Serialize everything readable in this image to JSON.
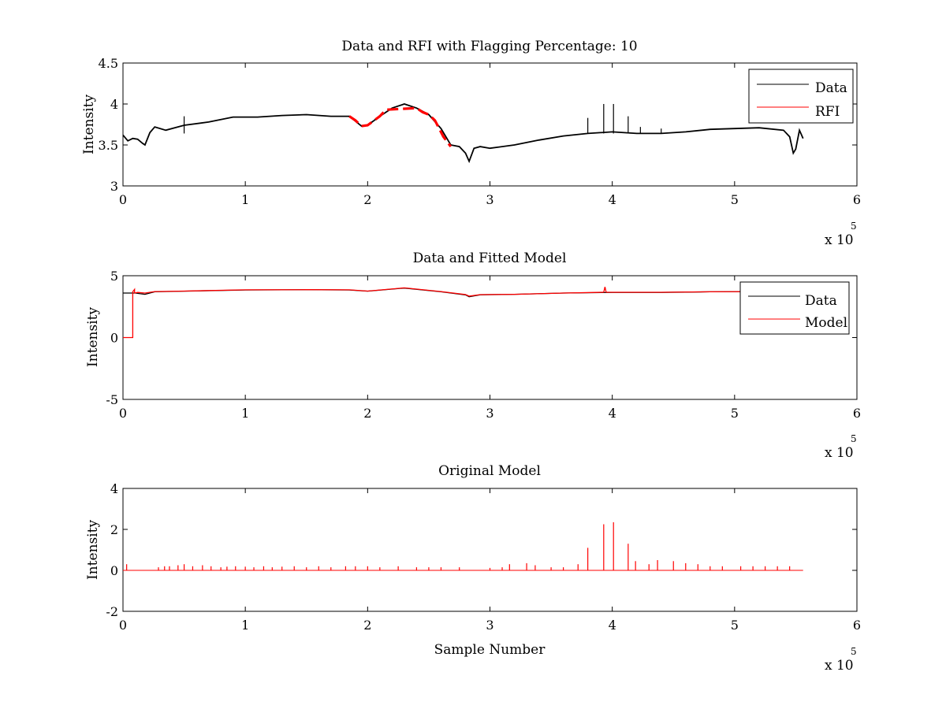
{
  "figure": {
    "background": "#ffffff",
    "colors": {
      "data": "#000000",
      "rfi": "#ff0000",
      "model": "#ff0000",
      "axes": "#000000"
    }
  },
  "chart_data": [
    {
      "type": "line",
      "title": "Data and RFI with Flagging Percentage: 10",
      "xlabel": "",
      "ylabel": "Intensity",
      "xlim": [
        0,
        600000
      ],
      "ylim": [
        3,
        4.5
      ],
      "x_ticks": [
        0,
        1,
        2,
        3,
        4,
        5,
        6
      ],
      "y_ticks": [
        3,
        3.5,
        4,
        4.5
      ],
      "y_tick_labels": [
        "3",
        "3.5",
        "4",
        "4.5"
      ],
      "x_multiplier": {
        "base": "x 10",
        "exponent": "5"
      },
      "legend": {
        "position": "top-right",
        "entries": [
          {
            "label": "Data",
            "color": "#000000"
          },
          {
            "label": "RFI",
            "color": "#ff0000"
          }
        ]
      },
      "series": [
        {
          "name": "Data",
          "color": "#000000",
          "x": [
            0,
            4000,
            8000,
            12000,
            16000,
            18000,
            22000,
            26000,
            35000,
            50000,
            70000,
            90000,
            110000,
            130000,
            150000,
            170000,
            185000,
            195000,
            200000,
            210000,
            220000,
            230000,
            240000,
            250000,
            260000,
            268000,
            275000,
            280000,
            283000,
            287000,
            292000,
            300000,
            320000,
            340000,
            360000,
            380000,
            400000,
            420000,
            440000,
            460000,
            480000,
            500000,
            520000,
            540000,
            545000,
            548000,
            550000,
            553000,
            556000
          ],
          "y": [
            3.62,
            3.55,
            3.58,
            3.57,
            3.52,
            3.5,
            3.65,
            3.72,
            3.68,
            3.74,
            3.78,
            3.84,
            3.84,
            3.86,
            3.87,
            3.85,
            3.85,
            3.73,
            3.74,
            3.85,
            3.95,
            4.0,
            3.95,
            3.87,
            3.7,
            3.5,
            3.48,
            3.4,
            3.3,
            3.46,
            3.48,
            3.46,
            3.5,
            3.56,
            3.61,
            3.64,
            3.66,
            3.64,
            3.64,
            3.66,
            3.69,
            3.7,
            3.71,
            3.68,
            3.6,
            3.4,
            3.45,
            3.68,
            3.58
          ]
        },
        {
          "name": "RFI",
          "color": "#ff0000",
          "x": [
            185000,
            190000,
            195000,
            200000,
            210000,
            215000,
            240000,
            245000,
            250000,
            255000,
            262000,
            268000
          ],
          "y": [
            3.85,
            3.8,
            3.73,
            3.74,
            3.85,
            3.93,
            3.95,
            3.9,
            3.87,
            3.8,
            3.6,
            3.48
          ]
        }
      ],
      "spikes": {
        "color": "#000000",
        "base": 3.64,
        "x": [
          50000,
          380000,
          393000,
          401000,
          413000,
          423000,
          440000
        ],
        "y": [
          3.85,
          3.83,
          4.0,
          4.0,
          3.85,
          3.72,
          3.7
        ]
      }
    },
    {
      "type": "line",
      "title": "Data and Fitted Model",
      "xlabel": "",
      "ylabel": "Intensity",
      "xlim": [
        0,
        600000
      ],
      "ylim": [
        -5,
        5
      ],
      "x_ticks": [
        0,
        1,
        2,
        3,
        4,
        5,
        6
      ],
      "y_ticks": [
        -5,
        0,
        5
      ],
      "y_tick_labels": [
        "-5",
        "0",
        "5"
      ],
      "x_multiplier": {
        "base": "x 10",
        "exponent": "5"
      },
      "legend": {
        "position": "top-right",
        "entries": [
          {
            "label": "Data",
            "color": "#000000"
          },
          {
            "label": "Model",
            "color": "#ff0000"
          }
        ]
      },
      "series": [
        {
          "name": "Data",
          "color": "#000000",
          "x": [
            0,
            10000,
            18000,
            26000,
            50000,
            100000,
            150000,
            185000,
            200000,
            230000,
            260000,
            280000,
            283000,
            292000,
            320000,
            360000,
            400000,
            440000,
            480000,
            520000,
            540000,
            548000,
            556000
          ],
          "y": [
            3.6,
            3.6,
            3.5,
            3.7,
            3.75,
            3.85,
            3.87,
            3.85,
            3.75,
            4.0,
            3.7,
            3.45,
            3.3,
            3.46,
            3.5,
            3.6,
            3.65,
            3.65,
            3.7,
            3.72,
            3.68,
            3.45,
            3.6
          ]
        },
        {
          "name": "Model",
          "color": "#ff0000",
          "x": [
            0,
            8000,
            8000,
            9500,
            9500,
            12000,
            18000,
            26000,
            50000,
            100000,
            150000,
            185000,
            200000,
            230000,
            260000,
            280000,
            283000,
            292000,
            320000,
            360000,
            393000,
            394000,
            395000,
            400000,
            440000,
            480000,
            520000,
            540000,
            548000,
            556000
          ],
          "y": [
            0,
            0,
            3.7,
            3.9,
            3.6,
            3.65,
            3.6,
            3.72,
            3.76,
            3.86,
            3.87,
            3.86,
            3.76,
            4.02,
            3.72,
            3.48,
            3.35,
            3.47,
            3.5,
            3.6,
            3.66,
            4.1,
            3.66,
            3.66,
            3.66,
            3.7,
            3.72,
            3.68,
            3.5,
            3.6
          ]
        }
      ]
    },
    {
      "type": "line",
      "title": "Original Model",
      "xlabel": "Sample Number",
      "ylabel": "Intensity",
      "xlim": [
        0,
        600000
      ],
      "ylim": [
        -2,
        4
      ],
      "x_ticks": [
        0,
        1,
        2,
        3,
        4,
        5,
        6
      ],
      "y_ticks": [
        -2,
        0,
        2,
        4
      ],
      "y_tick_labels": [
        "-2",
        "0",
        "2",
        "4"
      ],
      "x_multiplier": {
        "base": "x 10",
        "exponent": "5"
      },
      "series": [
        {
          "name": "",
          "color": "#ff0000",
          "baseline": 0,
          "x_end": 556000,
          "spikes_x": [
            3000,
            29000,
            34000,
            38000,
            45000,
            50000,
            57000,
            65000,
            72000,
            80000,
            85000,
            92000,
            100000,
            107000,
            115000,
            122000,
            130000,
            140000,
            150000,
            160000,
            170000,
            182000,
            190000,
            200000,
            210000,
            225000,
            240000,
            250000,
            260000,
            275000,
            300000,
            310000,
            316000,
            330000,
            337000,
            350000,
            360000,
            372000,
            380000,
            393000,
            401000,
            413000,
            419000,
            430000,
            437000,
            450000,
            460000,
            470000,
            480000,
            490000,
            505000,
            515000,
            525000,
            535000,
            545000
          ],
          "spikes_y": [
            0.3,
            0.15,
            0.2,
            0.2,
            0.25,
            0.3,
            0.2,
            0.25,
            0.2,
            0.15,
            0.18,
            0.2,
            0.18,
            0.15,
            0.2,
            0.15,
            0.18,
            0.2,
            0.15,
            0.2,
            0.15,
            0.2,
            0.2,
            0.2,
            0.15,
            0.2,
            0.15,
            0.15,
            0.15,
            0.15,
            0.12,
            0.15,
            0.3,
            0.35,
            0.25,
            0.15,
            0.15,
            0.3,
            1.1,
            2.25,
            2.35,
            1.3,
            0.45,
            0.3,
            0.5,
            0.45,
            0.35,
            0.3,
            0.2,
            0.2,
            0.2,
            0.2,
            0.2,
            0.2,
            0.2
          ]
        }
      ]
    }
  ]
}
